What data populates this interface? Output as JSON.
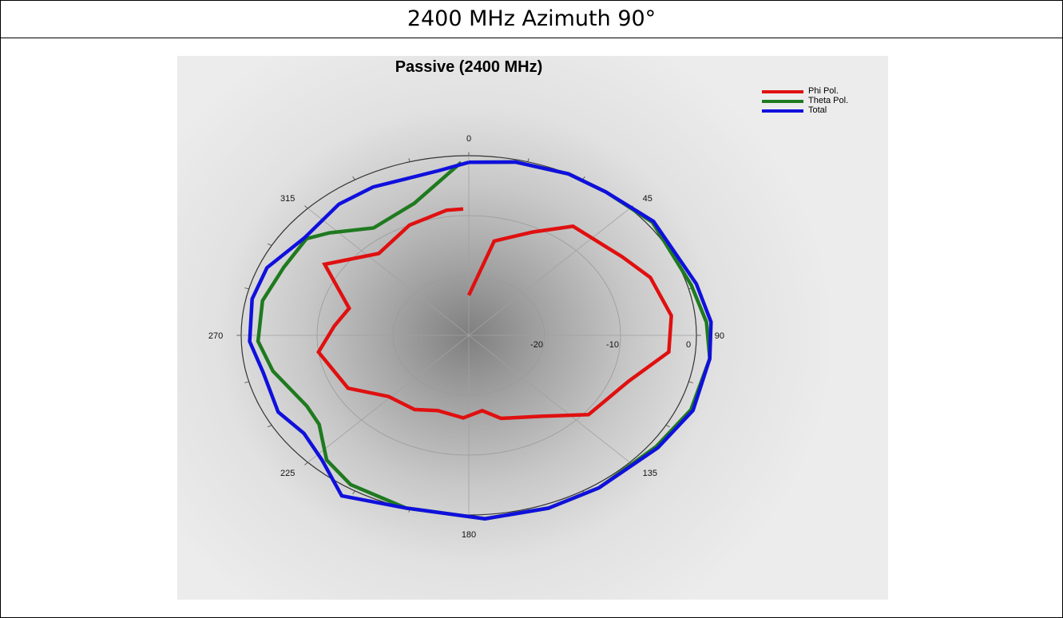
{
  "header": {
    "title": "2400 MHz Azimuth 90°"
  },
  "chart_data": {
    "type": "polar-line",
    "title": "Passive (2400 MHz)",
    "angle_labels": [
      "0",
      "45",
      "90",
      "135",
      "180",
      "225",
      "270",
      "315"
    ],
    "radial_labels": [
      "-20",
      "-10",
      "0"
    ],
    "r_range": [
      -30,
      0
    ],
    "legend_position": "top-right",
    "series": [
      {
        "name": "Phi Pol.",
        "color": "#e01010",
        "points": [
          [
            0,
            -23.3
          ],
          [
            12,
            -13.9
          ],
          [
            26,
            -10.8
          ],
          [
            37,
            -7.2
          ],
          [
            57,
            -5.9
          ],
          [
            68,
            -4.2
          ],
          [
            83,
            -3.1
          ],
          [
            96,
            -3.5
          ],
          [
            110,
            -7.6
          ],
          [
            130,
            -9.4
          ],
          [
            145,
            -13.5
          ],
          [
            163,
            -15.5
          ],
          [
            172,
            -17.3
          ],
          [
            183,
            -16.2
          ],
          [
            198,
            -16.8
          ],
          [
            210,
            -15.7
          ],
          [
            226,
            -15.3
          ],
          [
            241,
            -11.8
          ],
          [
            262,
            -10.0
          ],
          [
            275,
            -12.2
          ],
          [
            286,
            -13.6
          ],
          [
            302,
            -7.6
          ],
          [
            319,
            -11.9
          ],
          [
            337,
            -10.0
          ],
          [
            352,
            -8.9
          ],
          [
            358,
            -8.9
          ]
        ]
      },
      {
        "name": "Theta Pol.",
        "color": "#1f7a1f",
        "points": [
          [
            0,
            -1.1
          ],
          [
            12,
            -0.4
          ],
          [
            26,
            0.0
          ],
          [
            37,
            0.0
          ],
          [
            52,
            0.7
          ],
          [
            74,
            0.5
          ],
          [
            86,
            1.4
          ],
          [
            97,
            2.0
          ],
          [
            113,
            1.8
          ],
          [
            127,
            0.9
          ],
          [
            146,
            0.7
          ],
          [
            160,
            0.7
          ],
          [
            176,
            0.7
          ],
          [
            196,
            0.0
          ],
          [
            212,
            -0.6
          ],
          [
            222,
            -2.0
          ],
          [
            233,
            -5.3
          ],
          [
            241,
            -5.6
          ],
          [
            257,
            -3.5
          ],
          [
            268,
            -2.2
          ],
          [
            282,
            -2.2
          ],
          [
            295,
            -3.1
          ],
          [
            307,
            -3.2
          ],
          [
            313,
            -4.9
          ],
          [
            325,
            -8.1
          ],
          [
            342,
            -6.8
          ],
          [
            358,
            -1.1
          ]
        ]
      },
      {
        "name": "Total",
        "color": "#1010dd",
        "points": [
          [
            0,
            -1.1
          ],
          [
            12,
            -0.4
          ],
          [
            26,
            0.0
          ],
          [
            37,
            0.0
          ],
          [
            52,
            0.9
          ],
          [
            74,
            1.2
          ],
          [
            86,
            2.0
          ],
          [
            97,
            2.0
          ],
          [
            113,
            2.1
          ],
          [
            127,
            1.2
          ],
          [
            146,
            0.7
          ],
          [
            160,
            0.7
          ],
          [
            176,
            0.7
          ],
          [
            196,
            0.0
          ],
          [
            212,
            1.6
          ],
          [
            223,
            -1.6
          ],
          [
            233,
            -2.8
          ],
          [
            243,
            -1.8
          ],
          [
            257,
            -2.2
          ],
          [
            268,
            -1.1
          ],
          [
            282,
            -0.8
          ],
          [
            293,
            -1.1
          ],
          [
            307,
            -2.9
          ],
          [
            322,
            -2.2
          ],
          [
            333,
            -2.2
          ],
          [
            352,
            -2.2
          ],
          [
            360,
            -1.1
          ]
        ]
      }
    ]
  }
}
